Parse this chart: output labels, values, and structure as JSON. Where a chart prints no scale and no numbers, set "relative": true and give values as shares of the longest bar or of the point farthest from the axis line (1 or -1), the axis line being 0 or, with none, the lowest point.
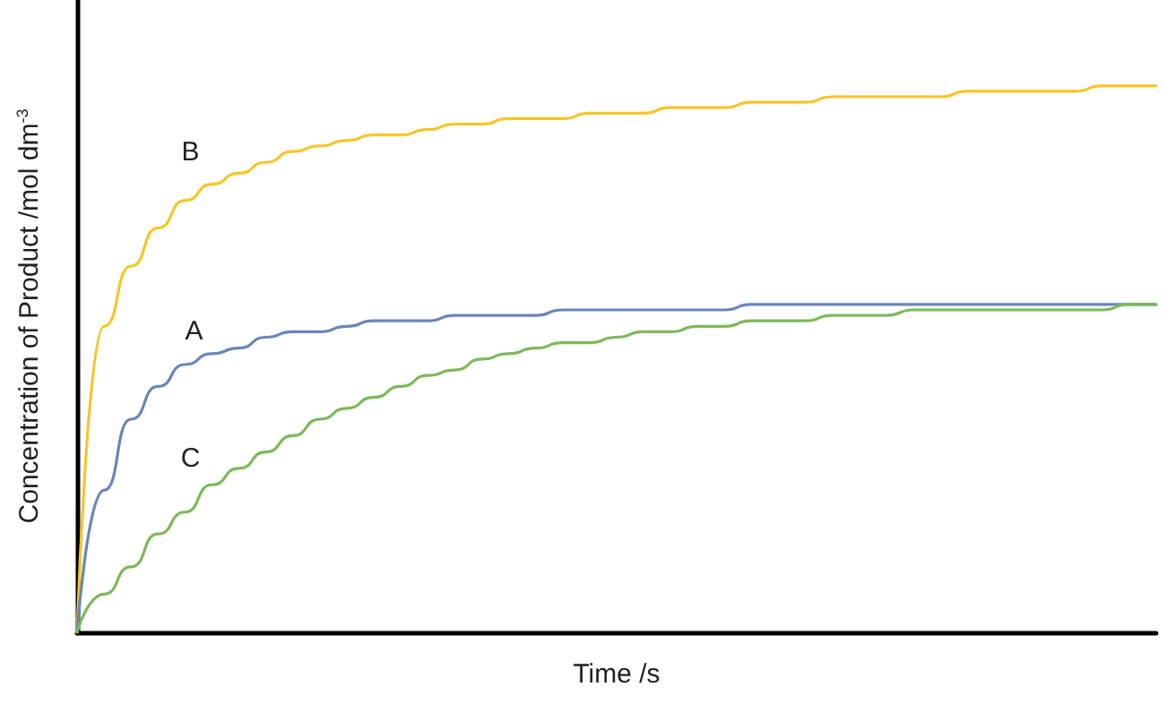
{
  "chart_data": {
    "type": "line",
    "relative": true,
    "xlabel": "Time /s",
    "ylabel": "Concentration of Product /mol dm$^{-3}$",
    "grid": false,
    "legend": false,
    "marker": "none",
    "line_style": "solid",
    "categories": [
      null,
      null,
      null,
      null,
      null,
      null,
      null,
      null,
      null,
      null,
      null,
      null,
      null,
      null,
      null,
      null,
      null,
      null,
      null,
      null,
      null,
      null,
      null,
      null,
      null,
      null,
      null,
      null,
      null,
      null,
      null,
      null,
      null,
      null,
      null,
      null,
      null,
      null,
      null,
      null,
      null
    ],
    "series": [
      {
        "name": "B",
        "color": "#f5c62a",
        "values": [
          0,
          0.56,
          0.67,
          0.74,
          0.79,
          0.82,
          0.84,
          0.86,
          0.88,
          0.89,
          0.9,
          0.91,
          0.91,
          0.92,
          0.93,
          0.93,
          0.94,
          0.94,
          0.94,
          0.95,
          0.95,
          0.95,
          0.96,
          0.96,
          0.96,
          0.97,
          0.97,
          0.97,
          0.98,
          0.98,
          0.98,
          0.98,
          0.98,
          0.99,
          0.99,
          0.99,
          0.99,
          0.99,
          1,
          1,
          1
        ]
      },
      {
        "name": "A",
        "color": "#6a86b8",
        "values": [
          0,
          0.26,
          0.39,
          0.45,
          0.49,
          0.51,
          0.52,
          0.54,
          0.55,
          0.55,
          0.56,
          0.57,
          0.57,
          0.57,
          0.58,
          0.58,
          0.58,
          0.58,
          0.59,
          0.59,
          0.59,
          0.59,
          0.59,
          0.59,
          0.59,
          0.6,
          0.6,
          0.6,
          0.6,
          0.6,
          0.6,
          0.6,
          0.6,
          0.6,
          0.6,
          0.6,
          0.6,
          0.6,
          0.6,
          0.6,
          0.6
        ]
      },
      {
        "name": "C",
        "color": "#7db95a",
        "values": [
          0,
          0.07,
          0.12,
          0.18,
          0.22,
          0.27,
          0.3,
          0.33,
          0.36,
          0.39,
          0.41,
          0.43,
          0.45,
          0.47,
          0.48,
          0.5,
          0.51,
          0.52,
          0.53,
          0.53,
          0.54,
          0.55,
          0.55,
          0.56,
          0.56,
          0.57,
          0.57,
          0.57,
          0.58,
          0.58,
          0.58,
          0.59,
          0.59,
          0.59,
          0.59,
          0.59,
          0.59,
          0.59,
          0.59,
          0.6,
          0.6
        ]
      }
    ]
  }
}
